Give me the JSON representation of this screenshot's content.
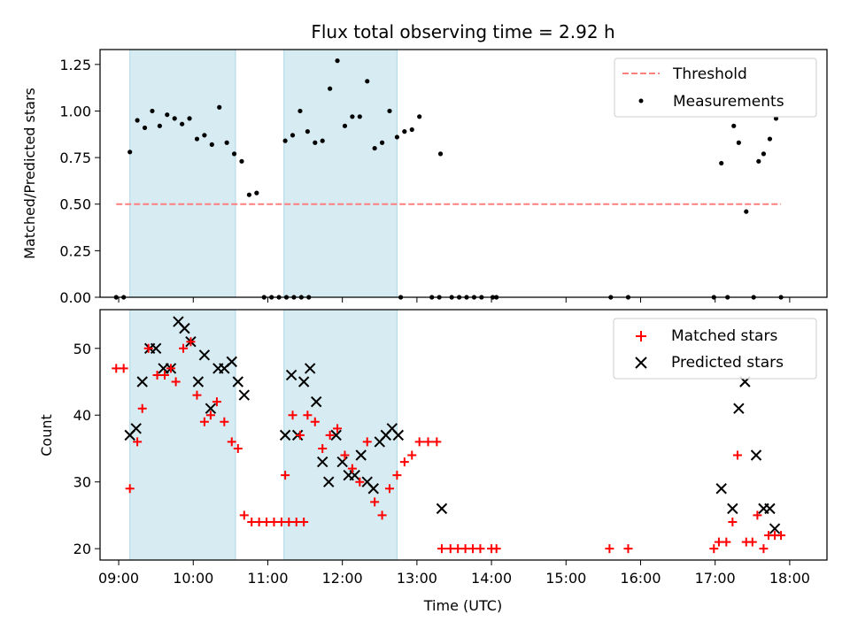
{
  "title": "Flux total observing time = 2.92 h",
  "colors": {
    "threshold": "#ff7f7f",
    "shade": "#add8e6",
    "matched": "#ff0000",
    "predicted": "#000000",
    "measurements": "#000000"
  },
  "chart_data": [
    {
      "type": "scatter",
      "ylabel": "Matched/Predicted stars",
      "ylim": [
        0,
        1.33
      ],
      "xlim": [
        "08:45",
        "18:30"
      ],
      "yticks": [
        "0.00",
        "0.25",
        "0.50",
        "0.75",
        "1.00",
        "1.25"
      ],
      "legend_position": "upper right",
      "shaded_intervals": [
        [
          "09:09",
          "10:34"
        ],
        [
          "11:13",
          "12:44"
        ]
      ],
      "threshold": {
        "name": "Threshold",
        "value": 0.5,
        "x": [
          "08:58",
          "17:53"
        ]
      },
      "series": [
        {
          "name": "Measurements",
          "points": [
            [
              "08:58",
              0.0
            ],
            [
              "09:04",
              0.0
            ],
            [
              "09:09",
              0.78
            ],
            [
              "09:15",
              0.95
            ],
            [
              "09:21",
              0.91
            ],
            [
              "09:27",
              1.0
            ],
            [
              "09:33",
              0.92
            ],
            [
              "09:39",
              0.98
            ],
            [
              "09:45",
              0.96
            ],
            [
              "09:51",
              0.93
            ],
            [
              "09:57",
              0.96
            ],
            [
              "10:03",
              0.85
            ],
            [
              "10:09",
              0.87
            ],
            [
              "10:15",
              0.82
            ],
            [
              "10:21",
              1.02
            ],
            [
              "10:27",
              0.83
            ],
            [
              "10:33",
              0.77
            ],
            [
              "10:39",
              0.73
            ],
            [
              "10:45",
              0.55
            ],
            [
              "10:51",
              0.56
            ],
            [
              "10:57",
              0.0
            ],
            [
              "11:03",
              0.0
            ],
            [
              "11:09",
              0.0
            ],
            [
              "11:15",
              0.0
            ],
            [
              "11:21",
              0.0
            ],
            [
              "11:27",
              0.0
            ],
            [
              "11:33",
              0.0
            ],
            [
              "11:14",
              0.84
            ],
            [
              "11:20",
              0.87
            ],
            [
              "11:26",
              1.0
            ],
            [
              "11:32",
              0.89
            ],
            [
              "11:38",
              0.83
            ],
            [
              "11:44",
              0.84
            ],
            [
              "11:50",
              1.12
            ],
            [
              "11:56",
              1.27
            ],
            [
              "12:02",
              0.92
            ],
            [
              "12:08",
              0.97
            ],
            [
              "12:14",
              0.97
            ],
            [
              "12:20",
              1.16
            ],
            [
              "12:26",
              0.8
            ],
            [
              "12:32",
              0.83
            ],
            [
              "12:38",
              1.0
            ],
            [
              "12:44",
              0.86
            ],
            [
              "12:50",
              0.89
            ],
            [
              "12:56",
              0.9
            ],
            [
              "13:02",
              0.97
            ],
            [
              "12:47",
              0.0
            ],
            [
              "13:12",
              0.0
            ],
            [
              "13:18",
              0.0
            ],
            [
              "13:19",
              0.77
            ],
            [
              "13:28",
              0.0
            ],
            [
              "13:34",
              0.0
            ],
            [
              "13:40",
              0.0
            ],
            [
              "13:46",
              0.0
            ],
            [
              "13:52",
              0.0
            ],
            [
              "14:01",
              0.0
            ],
            [
              "14:04",
              0.0
            ],
            [
              "15:36",
              0.0
            ],
            [
              "15:50",
              0.0
            ],
            [
              "16:59",
              0.0
            ],
            [
              "17:05",
              0.72
            ],
            [
              "17:10",
              0.0
            ],
            [
              "17:15",
              0.92
            ],
            [
              "17:19",
              0.83
            ],
            [
              "17:25",
              0.46
            ],
            [
              "17:31",
              0.0
            ],
            [
              "17:35",
              0.73
            ],
            [
              "17:39",
              0.77
            ],
            [
              "17:44",
              0.85
            ],
            [
              "17:49",
              0.96
            ],
            [
              "17:53",
              0.0
            ]
          ]
        }
      ]
    },
    {
      "type": "scatter",
      "xlabel": "Time (UTC)",
      "ylabel": "Count",
      "ylim": [
        18.3,
        55.8
      ],
      "xlim": [
        "08:45",
        "18:30"
      ],
      "xticks": [
        "09:00",
        "10:00",
        "11:00",
        "12:00",
        "13:00",
        "14:00",
        "15:00",
        "16:00",
        "17:00",
        "18:00"
      ],
      "yticks": [
        "20",
        "30",
        "40",
        "50"
      ],
      "legend_position": "upper right",
      "shaded_intervals": [
        [
          "09:09",
          "10:34"
        ],
        [
          "11:13",
          "12:44"
        ]
      ],
      "series": [
        {
          "name": "Matched stars",
          "marker": "+",
          "points": [
            [
              "08:58",
              47
            ],
            [
              "09:04",
              47
            ],
            [
              "09:09",
              29
            ],
            [
              "09:15",
              36
            ],
            [
              "09:19",
              41
            ],
            [
              "09:24",
              50
            ],
            [
              "09:31",
              46
            ],
            [
              "09:37",
              46
            ],
            [
              "09:42",
              47
            ],
            [
              "09:46",
              45
            ],
            [
              "09:52",
              50
            ],
            [
              "09:58",
              51
            ],
            [
              "10:03",
              43
            ],
            [
              "10:09",
              39
            ],
            [
              "10:14",
              40
            ],
            [
              "10:19",
              42
            ],
            [
              "10:25",
              39
            ],
            [
              "10:31",
              36
            ],
            [
              "10:36",
              35
            ],
            [
              "10:41",
              25
            ],
            [
              "10:47",
              24
            ],
            [
              "10:53",
              24
            ],
            [
              "10:59",
              24
            ],
            [
              "11:05",
              24
            ],
            [
              "11:11",
              24
            ],
            [
              "11:17",
              24
            ],
            [
              "11:23",
              24
            ],
            [
              "11:29",
              24
            ],
            [
              "11:14",
              31
            ],
            [
              "11:20",
              40
            ],
            [
              "11:26",
              37
            ],
            [
              "11:32",
              40
            ],
            [
              "11:38",
              39
            ],
            [
              "11:44",
              35
            ],
            [
              "11:50",
              37
            ],
            [
              "11:56",
              38
            ],
            [
              "12:02",
              34
            ],
            [
              "12:08",
              32
            ],
            [
              "12:14",
              30
            ],
            [
              "12:20",
              36
            ],
            [
              "12:26",
              27
            ],
            [
              "12:32",
              25
            ],
            [
              "12:38",
              29
            ],
            [
              "12:44",
              31
            ],
            [
              "12:50",
              33
            ],
            [
              "12:56",
              34
            ],
            [
              "13:02",
              36
            ],
            [
              "13:09",
              36
            ],
            [
              "13:16",
              36
            ],
            [
              "13:20",
              20
            ],
            [
              "13:27",
              20
            ],
            [
              "13:33",
              20
            ],
            [
              "13:39",
              20
            ],
            [
              "13:45",
              20
            ],
            [
              "13:51",
              20
            ],
            [
              "14:00",
              20
            ],
            [
              "14:04",
              20
            ],
            [
              "15:35",
              20
            ],
            [
              "15:50",
              20
            ],
            [
              "16:59",
              20
            ],
            [
              "17:03",
              21
            ],
            [
              "17:09",
              21
            ],
            [
              "17:14",
              24
            ],
            [
              "17:18",
              34
            ],
            [
              "17:25",
              21
            ],
            [
              "17:30",
              21
            ],
            [
              "17:34",
              25
            ],
            [
              "17:39",
              20
            ],
            [
              "17:43",
              22
            ],
            [
              "17:48",
              22
            ],
            [
              "17:53",
              22
            ]
          ]
        },
        {
          "name": "Predicted stars",
          "marker": "x",
          "points": [
            [
              "09:09",
              37
            ],
            [
              "09:14",
              38
            ],
            [
              "09:19",
              45
            ],
            [
              "09:25",
              50
            ],
            [
              "09:30",
              50
            ],
            [
              "09:36",
              47
            ],
            [
              "09:42",
              47
            ],
            [
              "09:48",
              54
            ],
            [
              "09:53",
              53
            ],
            [
              "09:58",
              51
            ],
            [
              "10:04",
              45
            ],
            [
              "10:09",
              49
            ],
            [
              "10:14",
              41
            ],
            [
              "10:20",
              47
            ],
            [
              "10:25",
              47
            ],
            [
              "10:31",
              48
            ],
            [
              "10:36",
              45
            ],
            [
              "10:41",
              43
            ],
            [
              "11:14",
              37
            ],
            [
              "11:19",
              46
            ],
            [
              "11:24",
              37
            ],
            [
              "11:29",
              45
            ],
            [
              "11:34",
              47
            ],
            [
              "11:39",
              42
            ],
            [
              "11:44",
              33
            ],
            [
              "11:49",
              30
            ],
            [
              "11:55",
              37
            ],
            [
              "12:00",
              33
            ],
            [
              "12:05",
              31
            ],
            [
              "12:10",
              31
            ],
            [
              "12:15",
              34
            ],
            [
              "12:20",
              30
            ],
            [
              "12:25",
              29
            ],
            [
              "12:30",
              36
            ],
            [
              "12:35",
              37
            ],
            [
              "12:40",
              38
            ],
            [
              "12:45",
              37
            ],
            [
              "13:20",
              26
            ],
            [
              "17:05",
              29
            ],
            [
              "17:14",
              26
            ],
            [
              "17:19",
              41
            ],
            [
              "17:24",
              45
            ],
            [
              "17:33",
              34
            ],
            [
              "17:39",
              26
            ],
            [
              "17:44",
              26
            ],
            [
              "17:48",
              23
            ]
          ]
        }
      ]
    }
  ]
}
